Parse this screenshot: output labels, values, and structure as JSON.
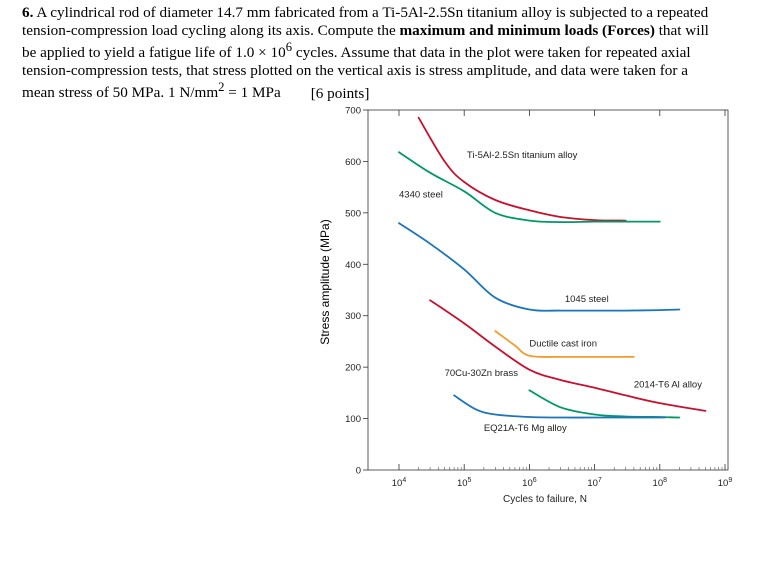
{
  "problem": {
    "number": "6.",
    "text_1": "A cylindrical rod of diameter 14.7 mm fabricated from a Ti-5Al-2.5Sn titanium alloy is subjected to a repeated tension-compression load cycling along its axis. Compute the ",
    "bold_1": "maximum and minimum loads (Forces)",
    "text_2": " that will be applied to yield a fatigue life of 1.0 × 10",
    "sup_1": "6",
    "text_3": " cycles. Assume that data in the plot were taken for repeated axial tension-compression tests, that stress plotted on the vertical axis is stress amplitude, and data were taken for a mean stress of 50 MPa.  1 N/mm",
    "sup_2": "2",
    "text_4": " = 1 MPa",
    "points": "[6 points]"
  },
  "chart_data": {
    "type": "line",
    "x_scale": "log",
    "xlabel": "Cycles to failure, N",
    "ylabel": "Stress amplitude (MPa)",
    "xlim": [
      5000,
      1000000000
    ],
    "ylim": [
      0,
      700
    ],
    "yticks": [
      0,
      100,
      200,
      300,
      400,
      500,
      600,
      700
    ],
    "ytick_labels": [
      "0",
      "100",
      "200",
      "300",
      "400",
      "500",
      "600",
      "700"
    ],
    "xticks": [
      10000,
      100000,
      1000000,
      10000000,
      100000000,
      1000000000
    ],
    "xtick_labels": [
      {
        "base": "10",
        "exp": "4"
      },
      {
        "base": "10",
        "exp": "5"
      },
      {
        "base": "10",
        "exp": "6"
      },
      {
        "base": "10",
        "exp": "7"
      },
      {
        "base": "10",
        "exp": "8"
      },
      {
        "base": "10",
        "exp": "9"
      }
    ],
    "series": [
      {
        "name": "Ti-5Al-2.5Sn titanium alloy",
        "color": "#c8102e",
        "x": [
          20000,
          50000,
          100000,
          300000,
          1000000,
          3000000,
          10000000,
          30000000
        ],
        "y": [
          685,
          600,
          560,
          525,
          505,
          492,
          486,
          485
        ],
        "label_at": [
          110000,
          607
        ]
      },
      {
        "name": "4340 steel",
        "color": "#009966",
        "x": [
          10000,
          30000,
          100000,
          300000,
          1000000,
          3000000,
          10000000,
          30000000,
          100000000
        ],
        "y": [
          618,
          578,
          542,
          500,
          485,
          482,
          483,
          483,
          483
        ],
        "label_at": [
          10000,
          530
        ]
      },
      {
        "name": "1045 steel",
        "color": "#1a75bb",
        "x": [
          10000,
          30000,
          100000,
          300000,
          1000000,
          3000000,
          10000000,
          30000000,
          100000000,
          200000000
        ],
        "y": [
          480,
          440,
          390,
          335,
          312,
          310,
          310,
          310,
          311,
          312
        ],
        "label_at": [
          3500000,
          327
        ]
      },
      {
        "name": "Ductile cast iron",
        "color": "#f39c2e",
        "x": [
          300000,
          600000,
          1000000,
          3000000,
          10000000,
          40000000
        ],
        "y": [
          270,
          242,
          222,
          220,
          220,
          220
        ],
        "label_at": [
          1000000,
          240
        ]
      },
      {
        "name": "2014-T6 Al alloy",
        "color": "#c8102e",
        "x": [
          30000,
          100000,
          300000,
          1000000,
          3000000,
          10000000,
          30000000,
          100000000,
          500000000
        ],
        "y": [
          330,
          285,
          240,
          195,
          175,
          160,
          145,
          130,
          115
        ],
        "label_at": [
          40000000,
          160
        ]
      },
      {
        "name": "70Cu-30Zn brass",
        "color": "#009966",
        "x": [
          1000000,
          3000000,
          10000000,
          30000000,
          100000000,
          200000000
        ],
        "y": [
          155,
          122,
          108,
          104,
          103,
          102
        ],
        "label_at": [
          50000,
          183
        ]
      },
      {
        "name": "EQ21A-T6 Mg alloy",
        "color": "#1a75bb",
        "x": [
          70000,
          150000,
          300000,
          1000000,
          3000000,
          10000000,
          30000000,
          100000000,
          120000000
        ],
        "y": [
          145,
          118,
          108,
          103,
          102,
          102,
          102,
          102,
          102
        ],
        "label_at": [
          200000,
          76
        ]
      }
    ]
  }
}
